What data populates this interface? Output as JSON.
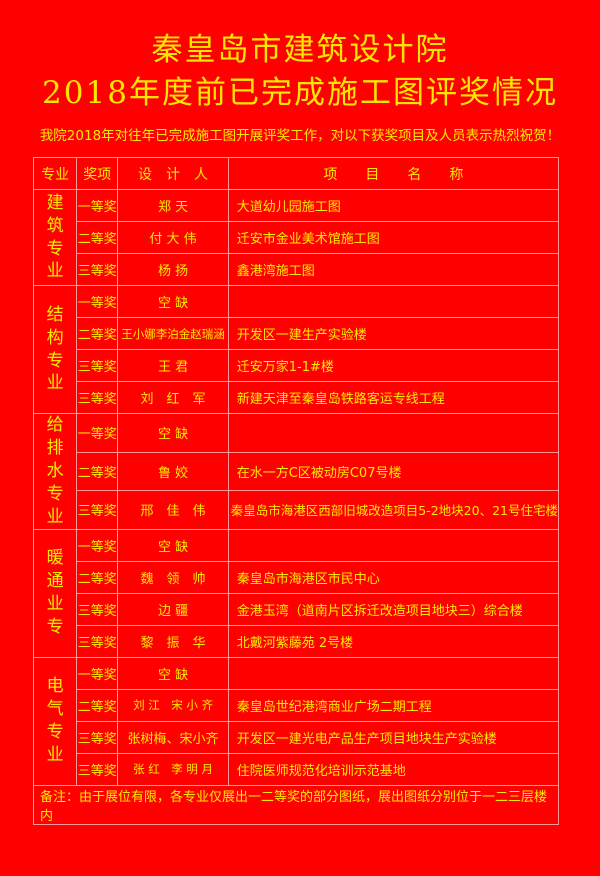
{
  "title_line1": "秦皇岛市建筑设计院",
  "title_line2": "2018年度前已完成施工图评奖情况",
  "subtitle": "我院2018年对往年已完成施工图开展评奖工作，对以下获奖项目及人员表示热烈祝贺！",
  "headers": [
    "专业",
    "奖项",
    "设　计　人",
    "项　　目　　名　　称"
  ],
  "groups": [
    {
      "label": [
        "建",
        "筑",
        "专",
        "业"
      ],
      "rows": [
        {
          "award": "一等奖",
          "designer": "郑 天",
          "project": "大道幼儿园施工图"
        },
        {
          "award": "二等奖",
          "designer": "付 大 伟",
          "project": "迁安市金业美术馆施工图"
        },
        {
          "award": "三等奖",
          "designer": "杨 扬",
          "project": "鑫港湾施工图"
        }
      ]
    },
    {
      "label": [
        "结",
        "构",
        "专",
        "业"
      ],
      "rows": [
        {
          "award": "一等奖",
          "designer": "空 缺",
          "project": ""
        },
        {
          "award": "二等奖",
          "designer": "王小娜李泊金赵瑞涵",
          "project": "开发区一建生产实验楼"
        },
        {
          "award": "三等奖",
          "designer": "王 君",
          "project": "迁安万家1-1#楼"
        },
        {
          "award": "三等奖",
          "designer": "刘　红　军",
          "project": "新建天津至秦皇岛铁路客运专线工程"
        }
      ]
    },
    {
      "label": [
        "给",
        "排",
        "水",
        "专",
        "业"
      ],
      "rows": [
        {
          "award": "一等奖",
          "designer": "空 缺",
          "project": ""
        },
        {
          "award": "二等奖",
          "designer": "鲁 姣",
          "project": "在水一方C区被动房C07号楼"
        },
        {
          "award": "三等奖",
          "designer": "邢　佳　伟",
          "project": "秦皇岛市海港区西部旧城改造项目5-2地块20、21号住宅楼"
        }
      ]
    },
    {
      "label": [
        "暖",
        "通",
        "业",
        "专"
      ],
      "rows": [
        {
          "award": "一等奖",
          "designer": "空 缺",
          "project": ""
        },
        {
          "award": "二等奖",
          "designer": "魏　领　帅",
          "project": "秦皇岛市海港区市民中心"
        },
        {
          "award": "三等奖",
          "designer": "边 疆",
          "project": "金港玉湾（道南片区拆迁改造项目地块三）综合楼"
        },
        {
          "award": "三等奖",
          "designer": "黎　振　华",
          "project": "北戴河紫藤苑 2号楼"
        }
      ]
    },
    {
      "label": [
        "电",
        "气",
        "专",
        "业"
      ],
      "rows": [
        {
          "award": "一等奖",
          "designer": "空 缺",
          "project": ""
        },
        {
          "award": "二等奖",
          "designer": "刘 江　宋 小 齐",
          "project": "秦皇岛世纪港湾商业广场二期工程"
        },
        {
          "award": "三等奖",
          "designer": "张树梅、宋小齐",
          "project": "开发区一建光电产品生产项目地块生产实验楼"
        },
        {
          "award": "三等奖",
          "designer": "张 红　李 明 月",
          "project": "住院医师规范化培训示范基地"
        }
      ]
    }
  ],
  "note": "备注：由于展位有限，各专业仅展出一二等奖的部分图纸，展出图纸分别位于一二三层楼内",
  "colors": {
    "background": "#ff0000",
    "text": "#ffea00",
    "border": "#ff9a9a"
  }
}
